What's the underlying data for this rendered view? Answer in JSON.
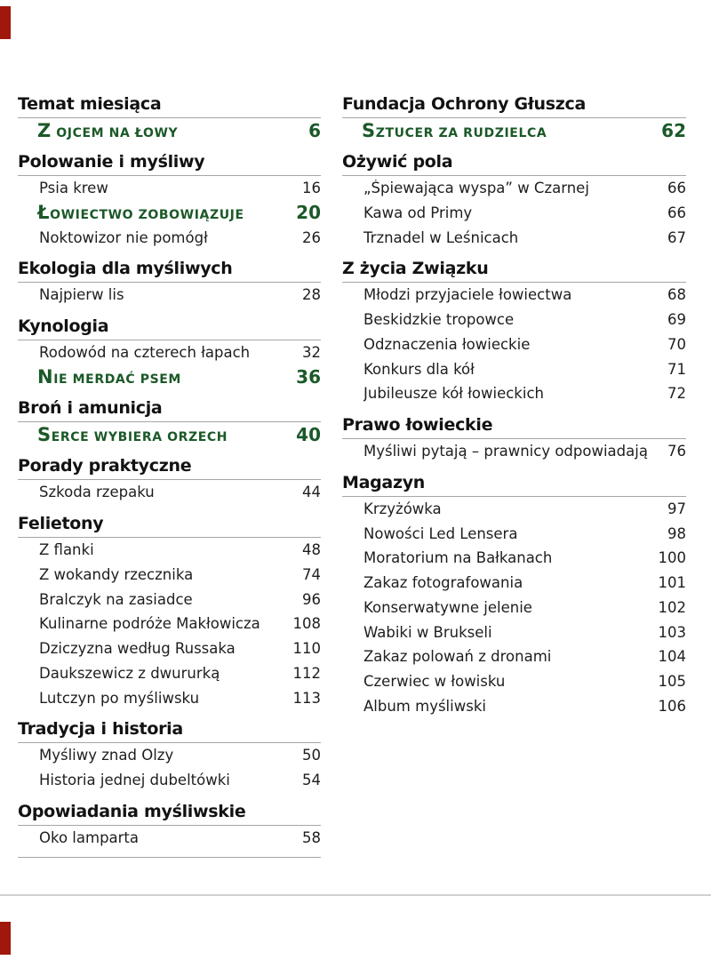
{
  "colors": {
    "background": "#FFFFFF",
    "accent_green": "#1B5928",
    "header_text": "#121212",
    "body_text": "#1E1E1E",
    "rule_gray": "#A6A6A6",
    "bottom_rule_gray": "#D0D0D0",
    "registration_mark_red": "#A0170B"
  },
  "columns": [
    {
      "name": "toc-column-left",
      "rows": [
        {
          "type": "header",
          "label": "Temat miesiąca"
        },
        {
          "type": "feature",
          "label": "Z OJCEM NA ŁOWY",
          "page": "6"
        },
        {
          "type": "header",
          "label": "Polowanie i myśliwy"
        },
        {
          "type": "item",
          "label": "Psia krew",
          "page": "16"
        },
        {
          "type": "feature",
          "label": "ŁOWIECTWO ZOBOWIĄZUJE",
          "page": "20"
        },
        {
          "type": "item",
          "label": "Noktowizor nie pomógł",
          "page": "26"
        },
        {
          "type": "header",
          "label": "Ekologia dla myśliwych"
        },
        {
          "type": "item",
          "label": "Najpierw lis",
          "page": "28"
        },
        {
          "type": "header",
          "label": "Kynologia"
        },
        {
          "type": "item",
          "label": "Rodowód na czterech łapach",
          "page": "32"
        },
        {
          "type": "feature",
          "label": "NIE MERDAĆ PSEM",
          "page": "36"
        },
        {
          "type": "header",
          "label": "Broń i amunicja"
        },
        {
          "type": "feature",
          "label": "SERCE WYBIERA ORZECH",
          "page": "40"
        },
        {
          "type": "header",
          "label": "Porady praktyczne"
        },
        {
          "type": "item",
          "label": "Szkoda rzepaku",
          "page": "44"
        },
        {
          "type": "header",
          "label": "Felietony"
        },
        {
          "type": "item",
          "label": "Z flanki",
          "page": "48"
        },
        {
          "type": "item",
          "label": "Z wokandy rzecznika",
          "page": "74"
        },
        {
          "type": "item",
          "label": "Bralczyk na zasiadce",
          "page": "96"
        },
        {
          "type": "item",
          "label": "Kulinarne podróże Makłowicza",
          "page": "108"
        },
        {
          "type": "item",
          "label": "Dziczyzna według Russaka",
          "page": "110"
        },
        {
          "type": "item",
          "label": "Daukszewicz z dwururką",
          "page": "112"
        },
        {
          "type": "item",
          "label": "Lutczyn po myśliwsku",
          "page": "113"
        },
        {
          "type": "header",
          "label": "Tradycja i historia"
        },
        {
          "type": "item",
          "label": "Myśliwy znad Olzy",
          "page": "50"
        },
        {
          "type": "item",
          "label": "Historia jednej dubeltówki",
          "page": "54"
        },
        {
          "type": "header",
          "label": "Opowiadania myśliwskie"
        },
        {
          "type": "item",
          "label": "Oko lamparta",
          "page": "58"
        },
        {
          "type": "separator"
        }
      ]
    },
    {
      "name": "toc-column-right",
      "rows": [
        {
          "type": "header",
          "label": "Fundacja Ochrony Głuszca"
        },
        {
          "type": "feature",
          "label": "SZTUCER ZA RUDZIELCA",
          "page": "62"
        },
        {
          "type": "header",
          "label": "Ożywić pola"
        },
        {
          "type": "item",
          "label": "„Śpiewająca wyspa” w Czarnej",
          "page": "66"
        },
        {
          "type": "item",
          "label": "Kawa od Primy",
          "page": "66"
        },
        {
          "type": "item",
          "label": "Trznadel w Leśnicach",
          "page": "67"
        },
        {
          "type": "header",
          "label": "Z życia Związku"
        },
        {
          "type": "item",
          "label": "Młodzi przyjaciele łowiectwa",
          "page": "68"
        },
        {
          "type": "item",
          "label": "Beskidzkie tropowce",
          "page": "69"
        },
        {
          "type": "item",
          "label": "Odznaczenia łowieckie",
          "page": "70"
        },
        {
          "type": "item",
          "label": "Konkurs dla kół",
          "page": "71"
        },
        {
          "type": "item",
          "label": "Jubileusze kół łowieckich",
          "page": "72"
        },
        {
          "type": "header",
          "label": "Prawo łowieckie"
        },
        {
          "type": "item",
          "label": "Myśliwi pytają – prawnicy odpowiadają",
          "page": "76"
        },
        {
          "type": "header",
          "label": "Magazyn"
        },
        {
          "type": "item",
          "label": "Krzyżówka",
          "page": "97"
        },
        {
          "type": "item",
          "label": "Nowości Led Lensera",
          "page": "98"
        },
        {
          "type": "item",
          "label": "Moratorium na Bałkanach",
          "page": "100"
        },
        {
          "type": "item",
          "label": "Zakaz fotografowania",
          "page": "101"
        },
        {
          "type": "item",
          "label": "Konserwatywne jelenie",
          "page": "102"
        },
        {
          "type": "item",
          "label": "Wabiki w Brukseli",
          "page": "103"
        },
        {
          "type": "item",
          "label": "Zakaz polowań z dronami",
          "page": "104"
        },
        {
          "type": "item",
          "label": "Czerwiec w łowisku",
          "page": "105"
        },
        {
          "type": "item",
          "label": "Album myśliwski",
          "page": "106"
        }
      ]
    }
  ]
}
